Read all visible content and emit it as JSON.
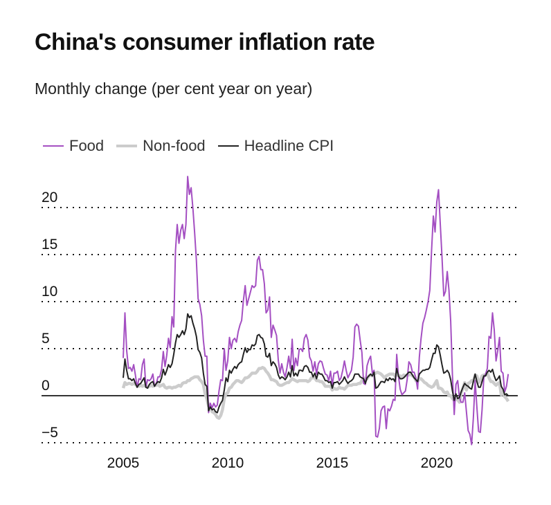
{
  "chart_data": {
    "type": "line",
    "title": "China's consumer inflation rate",
    "subtitle": "Monthly change (per cent year on year)",
    "x_start": "2005-01",
    "x_frequency": "monthly",
    "x_ticks": [
      "2005",
      "2010",
      "2015",
      "2020"
    ],
    "y_ticks": [
      20,
      15,
      10,
      5,
      0,
      -5
    ],
    "y_tick_labels": [
      "20",
      "15",
      "10",
      "5",
      "0",
      "−5"
    ],
    "ylim": [
      -5.5,
      23.5
    ],
    "grid": "dotted horizontal",
    "legend": "top-left",
    "series": [
      {
        "name": "Food",
        "color": "#a44fc2",
        "values": [
          4.0,
          8.8,
          4.8,
          2.9,
          3.0,
          2.6,
          3.3,
          2.2,
          0.9,
          1.8,
          1.7,
          3.3,
          3.9,
          0.9,
          1.7,
          1.6,
          1.8,
          2.3,
          1.0,
          1.3,
          2.0,
          2.0,
          2.8,
          4.7,
          3.1,
          4.3,
          6.1,
          5.1,
          8.4,
          7.3,
          15.4,
          18.2,
          16.2,
          17.6,
          18.2,
          16.7,
          18.2,
          23.3,
          21.4,
          22.1,
          19.9,
          17.3,
          14.4,
          10.3,
          9.7,
          8.5,
          5.9,
          4.2,
          4.2,
          -1.8,
          -0.8,
          -1.3,
          -0.8,
          -1.2,
          -1.0,
          0.5,
          1.7,
          1.6,
          5.0,
          2.7,
          3.7,
          6.2,
          5.0,
          5.9,
          6.1,
          5.7,
          6.8,
          7.5,
          8.0,
          10.1,
          11.7,
          9.6,
          10.3,
          11.0,
          11.7,
          11.5,
          11.7,
          14.4,
          14.8,
          13.4,
          13.4,
          11.9,
          8.8,
          9.1,
          10.5,
          6.2,
          7.5,
          7.0,
          6.4,
          3.8,
          2.4,
          3.4,
          2.5,
          2.0,
          3.0,
          4.2,
          2.9,
          6.0,
          2.7,
          4.0,
          3.2,
          4.9,
          5.0,
          4.7,
          6.1,
          6.5,
          5.9,
          4.1,
          3.7,
          2.6,
          3.6,
          2.3,
          3.4,
          3.7,
          3.6,
          2.9,
          2.3,
          2.2,
          1.6,
          2.6,
          1.1,
          2.4,
          2.4,
          2.6,
          1.6,
          1.9,
          2.7,
          3.7,
          2.7,
          1.9,
          2.3,
          2.7,
          4.1,
          7.3,
          7.6,
          7.4,
          5.9,
          4.6,
          1.3,
          1.2,
          3.2,
          3.8,
          4.2,
          2.4,
          2.7,
          -4.3,
          -4.4,
          -3.5,
          -1.6,
          -1.2,
          -1.1,
          -3.5,
          -1.4,
          -1.6,
          -1.1,
          -0.4,
          -0.5,
          4.4,
          2.1,
          0.7,
          0.1,
          0.3,
          0.5,
          1.7,
          3.6,
          3.3,
          2.5,
          2.5,
          1.9,
          0.7,
          4.1,
          6.1,
          7.7,
          8.3,
          9.1,
          10.0,
          11.2,
          15.5,
          19.1,
          17.4,
          20.6,
          21.9,
          18.3,
          14.8,
          10.6,
          11.1,
          13.2,
          11.2,
          7.9,
          2.2,
          -2.0,
          1.2,
          1.6,
          -0.2,
          -0.7,
          -0.7,
          0.3,
          -1.7,
          -3.7,
          -4.1,
          -5.2,
          -2.4,
          1.6,
          -1.2,
          -3.8,
          -3.9,
          -1.5,
          1.9,
          2.3,
          2.9,
          6.3,
          6.1,
          8.8,
          7.0,
          3.7,
          4.8,
          6.2,
          2.6,
          2.4,
          0.4,
          1.0,
          2.3
        ]
      },
      {
        "name": "Non-food",
        "color": "#cccccc",
        "values": [
          0.8,
          1.4,
          1.2,
          1.3,
          1.3,
          1.2,
          1.3,
          1.2,
          1.1,
          1.0,
          1.1,
          1.0,
          1.1,
          1.0,
          0.9,
          1.0,
          1.1,
          1.0,
          1.1,
          1.1,
          1.2,
          1.0,
          1.1,
          1.2,
          0.9,
          0.8,
          0.9,
          0.9,
          0.8,
          0.9,
          0.9,
          1.0,
          1.1,
          1.0,
          1.3,
          1.4,
          1.4,
          1.6,
          1.6,
          1.8,
          1.9,
          2.0,
          2.0,
          2.0,
          1.7,
          1.5,
          1.2,
          0.2,
          -0.3,
          -1.1,
          -1.2,
          -1.7,
          -1.8,
          -2.0,
          -2.3,
          -2.4,
          -2.1,
          -1.5,
          -0.3,
          0.2,
          0.3,
          0.8,
          0.9,
          1.2,
          1.4,
          1.6,
          1.6,
          1.5,
          1.4,
          1.6,
          1.9,
          1.9,
          2.0,
          2.2,
          2.4,
          2.4,
          2.4,
          2.6,
          2.9,
          2.9,
          3.0,
          2.9,
          2.6,
          2.4,
          2.1,
          1.7,
          1.7,
          1.6,
          1.5,
          1.2,
          1.1,
          1.1,
          1.2,
          1.3,
          1.4,
          1.4,
          1.6,
          1.8,
          1.7,
          1.6,
          1.5,
          1.6,
          1.6,
          1.6,
          1.6,
          1.6,
          1.5,
          1.6,
          1.9,
          1.9,
          1.9,
          1.6,
          1.6,
          1.5,
          1.5,
          1.3,
          1.0,
          1.0,
          1.0,
          1.0,
          0.6,
          0.8,
          0.7,
          0.7,
          0.9,
          0.8,
          0.8,
          0.7,
          0.9,
          1.1,
          1.1,
          1.1,
          1.2,
          1.2,
          1.2,
          1.3,
          1.3,
          1.6,
          1.9,
          1.7,
          1.8,
          2.1,
          2.2,
          2.1,
          2.3,
          2.4,
          2.5,
          2.4,
          2.3,
          2.1,
          1.9,
          2.1,
          2.2,
          2.3,
          2.3,
          2.3,
          2.1,
          2.4,
          2.1,
          2.1,
          2.0,
          2.2,
          2.1,
          2.2,
          2.2,
          2.3,
          2.1,
          2.0,
          1.6,
          1.5,
          1.8,
          1.8,
          1.6,
          1.4,
          1.3,
          1.1,
          1.0,
          0.9,
          1.0,
          1.3,
          1.6,
          0.8,
          0.8,
          0.7,
          0.4,
          0.3,
          0.4,
          0.0,
          0.0,
          -0.3,
          -0.5,
          -0.4,
          -0.4,
          -0.7,
          0.3,
          0.8,
          1.4,
          0.6,
          1.3,
          1.4,
          1.6,
          1.5,
          2.2,
          2.1,
          1.4,
          1.6,
          2.1,
          2.2,
          2.2,
          2.5,
          1.9,
          1.5,
          1.5,
          1.3,
          1.1,
          1.3,
          1.4,
          0.1,
          0.4,
          -0.1,
          -0.3,
          -0.6
        ]
      },
      {
        "name": "Headline CPI",
        "color": "#222222",
        "values": [
          1.9,
          3.9,
          2.7,
          1.8,
          1.8,
          1.6,
          1.8,
          1.3,
          0.9,
          1.2,
          1.3,
          1.6,
          1.9,
          0.9,
          0.8,
          1.2,
          1.4,
          1.5,
          1.0,
          1.3,
          1.5,
          1.4,
          1.9,
          2.8,
          2.2,
          2.7,
          3.3,
          3.0,
          3.4,
          4.4,
          5.6,
          6.5,
          6.2,
          6.5,
          6.9,
          6.5,
          7.1,
          8.7,
          8.3,
          8.5,
          7.7,
          7.1,
          6.3,
          4.9,
          4.6,
          4.0,
          2.4,
          1.2,
          1.0,
          -1.6,
          -1.2,
          -1.5,
          -1.4,
          -1.7,
          -1.8,
          -1.2,
          -0.8,
          -0.5,
          0.6,
          1.9,
          1.5,
          2.7,
          2.4,
          2.8,
          3.1,
          2.9,
          3.3,
          3.5,
          3.6,
          4.4,
          5.1,
          4.6,
          4.9,
          4.9,
          5.4,
          5.3,
          5.5,
          6.4,
          6.5,
          6.2,
          6.1,
          5.5,
          4.2,
          4.1,
          4.5,
          3.2,
          3.6,
          3.4,
          3.0,
          2.2,
          1.8,
          2.0,
          1.9,
          1.7,
          2.0,
          2.5,
          2.0,
          3.2,
          2.1,
          2.4,
          2.1,
          2.7,
          2.7,
          2.6,
          3.1,
          3.2,
          3.0,
          2.5,
          2.5,
          2.0,
          2.4,
          1.8,
          2.5,
          2.3,
          2.3,
          2.0,
          1.6,
          1.6,
          1.4,
          1.5,
          0.8,
          1.4,
          1.4,
          1.5,
          1.2,
          1.4,
          1.6,
          2.0,
          1.6,
          1.3,
          1.5,
          1.6,
          1.8,
          2.3,
          2.3,
          2.3,
          2.0,
          1.9,
          1.8,
          1.3,
          1.9,
          2.1,
          2.3,
          2.1,
          2.5,
          0.8,
          0.9,
          1.2,
          1.5,
          1.5,
          1.4,
          1.8,
          1.6,
          1.9,
          1.7,
          1.8,
          1.5,
          2.9,
          2.1,
          1.8,
          1.8,
          1.9,
          2.1,
          2.3,
          2.5,
          2.5,
          2.2,
          1.9,
          1.7,
          1.5,
          2.3,
          2.5,
          2.7,
          2.7,
          2.8,
          2.8,
          3.0,
          3.8,
          4.5,
          4.5,
          5.4,
          5.2,
          4.3,
          3.3,
          2.4,
          2.5,
          2.7,
          2.4,
          1.7,
          0.5,
          -0.5,
          0.2,
          -0.3,
          -0.2,
          0.4,
          0.9,
          1.3,
          1.1,
          1.0,
          0.8,
          0.7,
          1.5,
          2.3,
          1.5,
          0.9,
          0.9,
          1.5,
          2.1,
          2.1,
          2.5,
          2.7,
          2.5,
          2.8,
          2.1,
          1.6,
          1.8,
          2.1,
          1.0,
          0.7,
          0.1,
          0.2,
          0.0
        ]
      }
    ]
  }
}
